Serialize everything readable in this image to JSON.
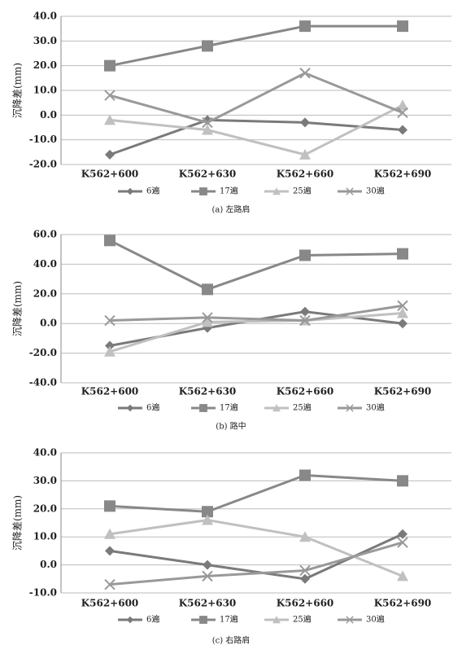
{
  "chart_data": [
    {
      "type": "line",
      "caption": "(a) 左路肩",
      "ylabel": "沉降差(mm)",
      "grid": true,
      "categories": [
        "K562+600",
        "K562+630",
        "K562+660",
        "K562+690"
      ],
      "ylim": [
        -20,
        40
      ],
      "yticks": [
        {
          "value": -20,
          "label": "-20.0"
        },
        {
          "value": -10,
          "label": "-10.0"
        },
        {
          "value": 0,
          "label": "0.0"
        },
        {
          "value": 10,
          "label": "10.0"
        },
        {
          "value": 20,
          "label": "20.0"
        },
        {
          "value": 30,
          "label": "30.0"
        },
        {
          "value": 40,
          "label": "40.0"
        }
      ],
      "series": [
        {
          "name": "6遍",
          "color": "#7a7a7a",
          "marker": "diamond",
          "values": [
            -16,
            -2,
            -3,
            -6
          ]
        },
        {
          "name": "17遍",
          "color": "#888888",
          "marker": "square",
          "values": [
            20,
            28,
            36,
            36
          ]
        },
        {
          "name": "25遍",
          "color": "#c0c0c0",
          "marker": "triangle",
          "values": [
            -2,
            -6,
            -16,
            4
          ]
        },
        {
          "name": "30遍",
          "color": "#999999",
          "marker": "x",
          "values": [
            8,
            -3,
            17,
            1
          ]
        }
      ]
    },
    {
      "type": "line",
      "caption": "(b) 路中",
      "ylabel": "沉降差(mm)",
      "grid": true,
      "categories": [
        "K562+600",
        "K562+630",
        "K562+660",
        "K562+690"
      ],
      "ylim": [
        -40,
        60
      ],
      "yticks": [
        {
          "value": -40,
          "label": "-40.0"
        },
        {
          "value": -20,
          "label": "-20.0"
        },
        {
          "value": 0,
          "label": "0.0"
        },
        {
          "value": 20,
          "label": "20.0"
        },
        {
          "value": 40,
          "label": "40.0"
        },
        {
          "value": 60,
          "label": "60.0"
        }
      ],
      "series": [
        {
          "name": "6遍",
          "color": "#7a7a7a",
          "marker": "diamond",
          "values": [
            -15,
            -3,
            8,
            0
          ]
        },
        {
          "name": "17遍",
          "color": "#888888",
          "marker": "square",
          "values": [
            56,
            23,
            46,
            47
          ]
        },
        {
          "name": "25遍",
          "color": "#c0c0c0",
          "marker": "triangle",
          "values": [
            -19,
            1,
            2,
            7
          ]
        },
        {
          "name": "30遍",
          "color": "#999999",
          "marker": "x",
          "values": [
            2,
            4,
            2,
            12
          ]
        }
      ]
    },
    {
      "type": "line",
      "caption": "(c) 右路肩",
      "ylabel": "沉降差(mm)",
      "grid": true,
      "categories": [
        "K562+600",
        "K562+630",
        "K562+660",
        "K562+690"
      ],
      "ylim": [
        -10,
        40
      ],
      "yticks": [
        {
          "value": -10,
          "label": "-10.0"
        },
        {
          "value": 0,
          "label": "0.0"
        },
        {
          "value": 10,
          "label": "10.0"
        },
        {
          "value": 20,
          "label": "20.0"
        },
        {
          "value": 30,
          "label": "30.0"
        },
        {
          "value": 40,
          "label": "40.0"
        }
      ],
      "series": [
        {
          "name": "6遍",
          "color": "#7a7a7a",
          "marker": "diamond",
          "values": [
            5,
            0,
            -5,
            11
          ]
        },
        {
          "name": "17遍",
          "color": "#888888",
          "marker": "square",
          "values": [
            21,
            19,
            32,
            30
          ]
        },
        {
          "name": "25遍",
          "color": "#c0c0c0",
          "marker": "triangle",
          "values": [
            11,
            16,
            10,
            -4
          ]
        },
        {
          "name": "30遍",
          "color": "#999999",
          "marker": "x",
          "values": [
            -7,
            -4,
            -2,
            8
          ]
        }
      ]
    }
  ]
}
